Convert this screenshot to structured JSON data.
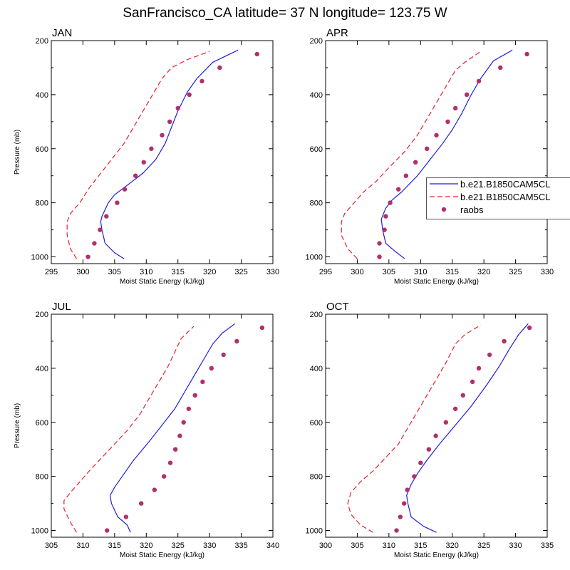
{
  "figure_title": "SanFrancisco_CA  latitude= 37 N longitude= 123.75 W",
  "colors": {
    "series1": "#1f1fe0",
    "series2": "#e8202a",
    "raobs": "#b0306a",
    "axis": "#000000"
  },
  "chart_data": [
    {
      "type": "line",
      "title": "JAN",
      "xlabel": "Moist Static Energy (kJ/kg)",
      "ylabel": "Pressure (mb)",
      "xlim": [
        295,
        330
      ],
      "xticks": [
        295,
        300,
        305,
        310,
        315,
        320,
        325,
        330
      ],
      "ylim": [
        1025,
        200
      ],
      "yticks": [
        200,
        400,
        600,
        800,
        1000
      ],
      "series": [
        {
          "name": "b.e21.B1850CAM5CL",
          "style": "solid",
          "points": [
            [
              306.5,
              1007
            ],
            [
              305,
              985
            ],
            [
              303.5,
              950
            ],
            [
              303,
              900
            ],
            [
              302.8,
              870
            ],
            [
              303,
              850
            ],
            [
              304,
              800
            ],
            [
              305,
              770
            ],
            [
              307,
              735
            ],
            [
              309.5,
              690
            ],
            [
              311.5,
              640
            ],
            [
              313,
              580
            ],
            [
              314,
              520
            ],
            [
              315,
              460
            ],
            [
              316.5,
              390
            ],
            [
              318,
              340
            ],
            [
              320.5,
              280
            ],
            [
              324.5,
              235
            ]
          ]
        },
        {
          "name": "b.e21.B1850CAM5CL",
          "style": "dashed",
          "points": [
            [
              299,
              1007
            ],
            [
              298,
              970
            ],
            [
              297.5,
              920
            ],
            [
              297.5,
              870
            ],
            [
              298,
              840
            ],
            [
              299.5,
              800
            ],
            [
              301,
              745
            ],
            [
              302.5,
              700
            ],
            [
              304.5,
              640
            ],
            [
              306.5,
              580
            ],
            [
              308,
              520
            ],
            [
              309.5,
              460
            ],
            [
              311,
              400
            ],
            [
              312.5,
              340
            ],
            [
              314,
              300
            ],
            [
              316.5,
              270
            ],
            [
              320,
              240
            ]
          ]
        },
        {
          "name": "raobs",
          "style": "markers",
          "points": [
            [
              300.8,
              1000
            ],
            [
              301.8,
              950
            ],
            [
              302.7,
              900
            ],
            [
              303.7,
              850
            ],
            [
              305.4,
              800
            ],
            [
              306.6,
              750
            ],
            [
              308.3,
              700
            ],
            [
              309.6,
              650
            ],
            [
              310.8,
              600
            ],
            [
              312.5,
              550
            ],
            [
              313.7,
              500
            ],
            [
              315,
              450
            ],
            [
              316.8,
              400
            ],
            [
              318.8,
              350
            ],
            [
              321.6,
              300
            ],
            [
              327.5,
              250
            ]
          ]
        }
      ]
    },
    {
      "type": "line",
      "title": "APR",
      "xlabel": "Moist Static Energy (kJ/kg)",
      "ylabel": "",
      "xlim": [
        295,
        330
      ],
      "xticks": [
        295,
        300,
        305,
        310,
        315,
        320,
        325,
        330
      ],
      "ylim": [
        1025,
        200
      ],
      "yticks": [
        200,
        400,
        600,
        800,
        1000
      ],
      "series": [
        {
          "name": "b.e21.B1850CAM5CL",
          "style": "solid",
          "points": [
            [
              307.5,
              1007
            ],
            [
              306,
              980
            ],
            [
              304.5,
              950
            ],
            [
              304,
              900
            ],
            [
              303.8,
              860
            ],
            [
              304.5,
              820
            ],
            [
              305.5,
              790
            ],
            [
              307,
              760
            ],
            [
              309.5,
              700
            ],
            [
              311.5,
              640
            ],
            [
              313.5,
              580
            ],
            [
              315,
              530
            ],
            [
              316.5,
              470
            ],
            [
              318,
              400
            ],
            [
              319.5,
              340
            ],
            [
              321.5,
              275
            ],
            [
              324.5,
              235
            ]
          ]
        },
        {
          "name": "b.e21.B1850CAM5CL",
          "style": "dashed",
          "points": [
            [
              300,
              1007
            ],
            [
              298.5,
              970
            ],
            [
              297.5,
              920
            ],
            [
              297.5,
              870
            ],
            [
              298,
              840
            ],
            [
              299.5,
              800
            ],
            [
              301,
              760
            ],
            [
              303,
              720
            ],
            [
              305,
              670
            ],
            [
              307.5,
              610
            ],
            [
              309.5,
              550
            ],
            [
              311,
              490
            ],
            [
              312.5,
              430
            ],
            [
              314,
              370
            ],
            [
              315.5,
              310
            ],
            [
              317,
              280
            ],
            [
              319.5,
              240
            ]
          ]
        },
        {
          "name": "raobs",
          "style": "markers",
          "points": [
            [
              303.5,
              1000
            ],
            [
              303.5,
              950
            ],
            [
              304.3,
              900
            ],
            [
              304.5,
              850
            ],
            [
              305.2,
              800
            ],
            [
              306.5,
              750
            ],
            [
              307.7,
              700
            ],
            [
              309.2,
              650
            ],
            [
              311,
              600
            ],
            [
              312.5,
              550
            ],
            [
              314.3,
              500
            ],
            [
              315.5,
              450
            ],
            [
              317.3,
              400
            ],
            [
              319.2,
              350
            ],
            [
              322.6,
              300
            ],
            [
              326.8,
              250
            ]
          ]
        }
      ]
    },
    {
      "type": "line",
      "title": "JUL",
      "xlabel": "Moist Static Energy (kJ/kg)",
      "ylabel": "Pressure (mb)",
      "xlim": [
        305,
        340
      ],
      "xticks": [
        305,
        310,
        315,
        320,
        325,
        330,
        335,
        340
      ],
      "ylim": [
        1025,
        200
      ],
      "yticks": [
        200,
        400,
        600,
        800,
        1000
      ],
      "series": [
        {
          "name": "b.e21.B1850CAM5CL",
          "style": "solid",
          "points": [
            [
              317.5,
              1007
            ],
            [
              317,
              980
            ],
            [
              315.5,
              950
            ],
            [
              314.5,
              900
            ],
            [
              314.3,
              870
            ],
            [
              315,
              840
            ],
            [
              316.5,
              790
            ],
            [
              318,
              740
            ],
            [
              320.5,
              670
            ],
            [
              322.5,
              610
            ],
            [
              324.5,
              550
            ],
            [
              326,
              490
            ],
            [
              327.5,
              430
            ],
            [
              329,
              370
            ],
            [
              330.5,
              310
            ],
            [
              332,
              270
            ],
            [
              334,
              235
            ]
          ]
        },
        {
          "name": "b.e21.B1850CAM5CL",
          "style": "dashed",
          "points": [
            [
              309,
              1007
            ],
            [
              308,
              970
            ],
            [
              307,
              920
            ],
            [
              307,
              890
            ],
            [
              308,
              860
            ],
            [
              309.5,
              820
            ],
            [
              311,
              780
            ],
            [
              313,
              730
            ],
            [
              315,
              680
            ],
            [
              317,
              630
            ],
            [
              319,
              570
            ],
            [
              320.5,
              510
            ],
            [
              322,
              450
            ],
            [
              323.5,
              390
            ],
            [
              324.5,
              340
            ],
            [
              325.5,
              290
            ],
            [
              327.5,
              245
            ]
          ]
        },
        {
          "name": "raobs",
          "style": "markers",
          "points": [
            [
              313.8,
              1000
            ],
            [
              316.8,
              950
            ],
            [
              319.2,
              900
            ],
            [
              321.3,
              850
            ],
            [
              322.8,
              800
            ],
            [
              323.8,
              750
            ],
            [
              324.6,
              700
            ],
            [
              325.3,
              650
            ],
            [
              325.9,
              600
            ],
            [
              326.7,
              550
            ],
            [
              327.7,
              500
            ],
            [
              328.9,
              450
            ],
            [
              330.3,
              400
            ],
            [
              332.2,
              350
            ],
            [
              334.3,
              300
            ],
            [
              338.3,
              250
            ]
          ]
        }
      ]
    },
    {
      "type": "line",
      "title": "OCT",
      "xlabel": "Moist Static Energy (kJ/kg)",
      "ylabel": "",
      "xlim": [
        300,
        335
      ],
      "xticks": [
        300,
        305,
        310,
        315,
        320,
        325,
        330,
        335
      ],
      "ylim": [
        1025,
        200
      ],
      "yticks": [
        200,
        400,
        600,
        800,
        1000
      ],
      "series": [
        {
          "name": "b.e21.B1850CAM5CL",
          "style": "solid",
          "points": [
            [
              317.5,
              1007
            ],
            [
              315.5,
              985
            ],
            [
              313.5,
              950
            ],
            [
              313,
              900
            ],
            [
              312.8,
              870
            ],
            [
              313.5,
              830
            ],
            [
              314.5,
              790
            ],
            [
              316,
              740
            ],
            [
              318,
              680
            ],
            [
              320.5,
              610
            ],
            [
              323,
              540
            ],
            [
              325.5,
              460
            ],
            [
              327.5,
              390
            ],
            [
              329,
              330
            ],
            [
              330.5,
              275
            ],
            [
              332,
              235
            ]
          ]
        },
        {
          "name": "b.e21.B1850CAM5CL",
          "style": "dashed",
          "points": [
            [
              307.5,
              1007
            ],
            [
              305.5,
              980
            ],
            [
              304,
              940
            ],
            [
              303.5,
              900
            ],
            [
              304,
              860
            ],
            [
              305.5,
              820
            ],
            [
              307.5,
              780
            ],
            [
              309.5,
              730
            ],
            [
              311.5,
              680
            ],
            [
              313,
              620
            ],
            [
              314.5,
              560
            ],
            [
              316,
              500
            ],
            [
              317.5,
              440
            ],
            [
              319,
              380
            ],
            [
              320.5,
              310
            ],
            [
              322,
              275
            ],
            [
              324.5,
              240
            ]
          ]
        },
        {
          "name": "raobs",
          "style": "markers",
          "points": [
            [
              311.2,
              1000
            ],
            [
              311.8,
              950
            ],
            [
              312.4,
              900
            ],
            [
              312.9,
              850
            ],
            [
              314,
              800
            ],
            [
              315,
              750
            ],
            [
              316.3,
              700
            ],
            [
              317.4,
              650
            ],
            [
              319,
              600
            ],
            [
              320.5,
              550
            ],
            [
              321.7,
              500
            ],
            [
              323.2,
              450
            ],
            [
              324.2,
              400
            ],
            [
              325.9,
              350
            ],
            [
              328.2,
              300
            ],
            [
              332.2,
              250
            ]
          ]
        }
      ]
    }
  ],
  "legend": {
    "entries": [
      {
        "label": "b.e21.B1850CAM5CL",
        "style": "solid"
      },
      {
        "label": "b.e21.B1850CAM5CL",
        "style": "dashed"
      },
      {
        "label": "raobs",
        "style": "markers"
      }
    ]
  }
}
